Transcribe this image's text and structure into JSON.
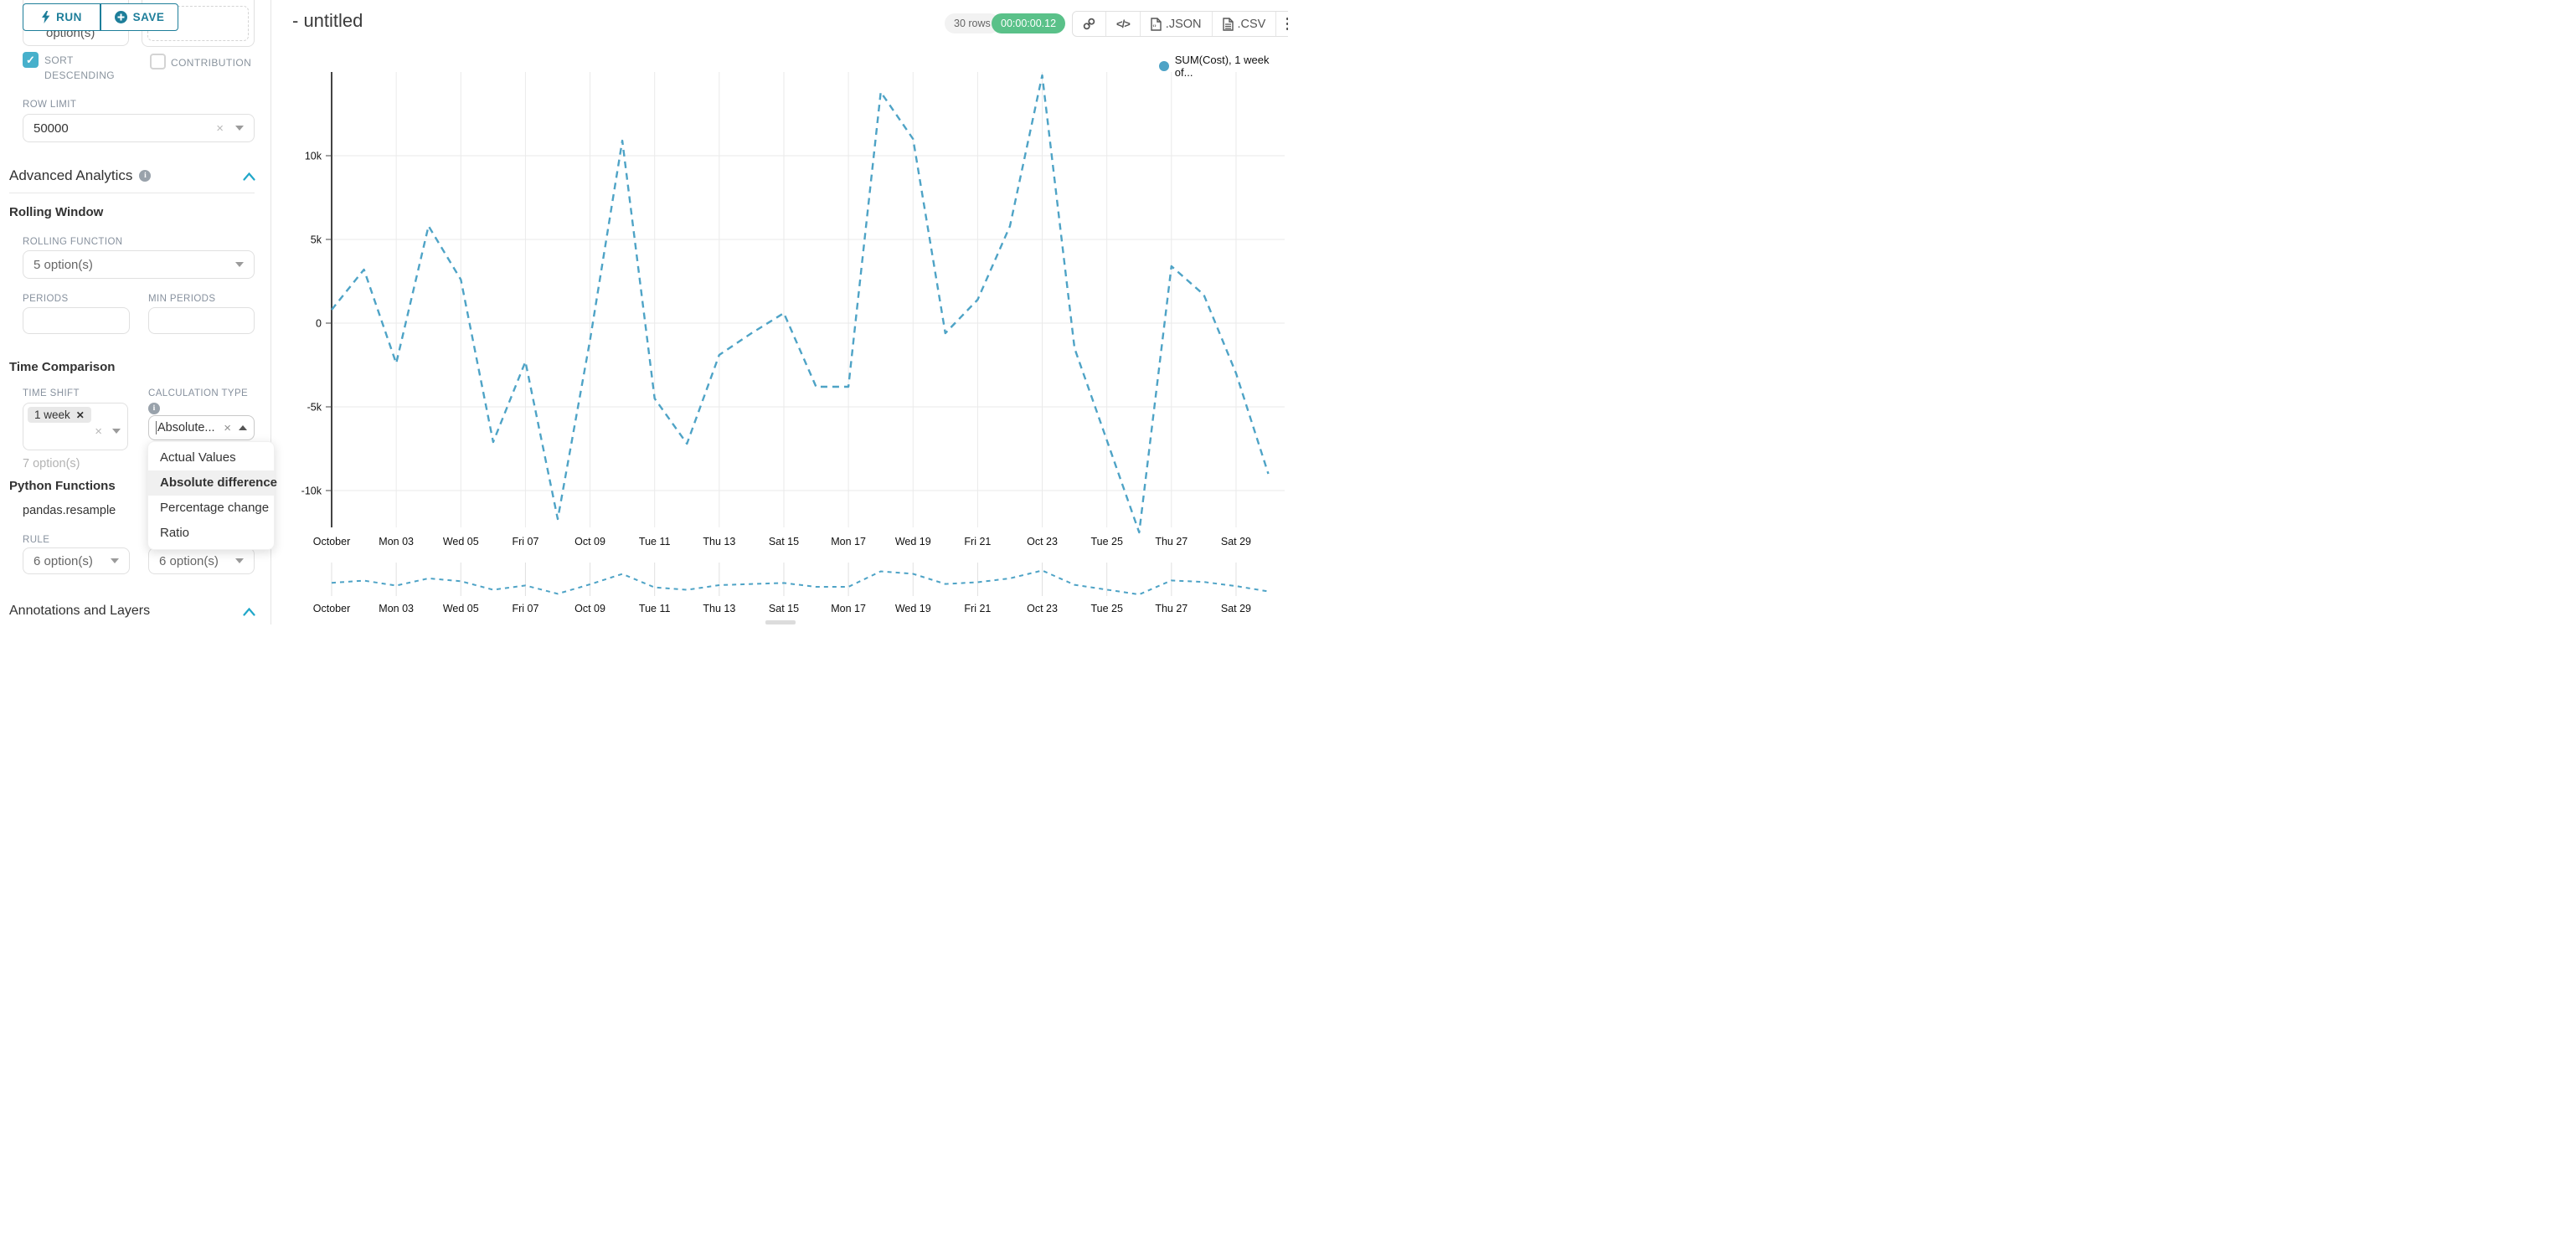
{
  "header": {
    "run_label": "RUN",
    "save_label": "SAVE",
    "title": "- untitled",
    "rows_badge": "30 rows",
    "timer_badge": "00:00:00.12",
    "export_json_label": ".JSON",
    "export_csv_label": ".CSV"
  },
  "sidebar": {
    "clipped_option_text": "option(s)",
    "sort_descending_label": "SORT DESCENDING",
    "contribution_label": "CONTRIBUTION",
    "row_limit_label": "ROW LIMIT",
    "row_limit_value": "50000",
    "advanced_analytics_title": "Advanced Analytics",
    "rolling_window_title": "Rolling Window",
    "rolling_function_label": "ROLLING FUNCTION",
    "rolling_function_value": "5 option(s)",
    "periods_label": "PERIODS",
    "min_periods_label": "MIN PERIODS",
    "time_comparison_title": "Time Comparison",
    "time_shift_label": "TIME SHIFT",
    "time_shift_tag": "1 week",
    "time_shift_helper": "7 option(s)",
    "calculation_type_label": "CALCULATION TYPE",
    "calculation_type_value": "Absolute...",
    "calculation_type_options": [
      "Actual Values",
      "Absolute difference",
      "Percentage change",
      "Ratio"
    ],
    "calculation_type_selected": "Absolute difference",
    "python_functions_title": "Python Functions",
    "python_functions_subtitle": "pandas.resample",
    "rule_label": "RULE",
    "rule_value": "6 option(s)",
    "rule_value_2": "6 option(s)",
    "annotations_title": "Annotations and Layers"
  },
  "colors": {
    "accent": "#20a7c9",
    "button_teal": "#1e7e9a",
    "checkbox_teal": "#47b0cb",
    "success_green": "#5ac189",
    "line_blue": "#4ea3c6"
  },
  "chart_data": {
    "type": "line",
    "title": "- untitled",
    "x": [
      "Oct 01",
      "Oct 02",
      "Oct 03",
      "Oct 04",
      "Oct 05",
      "Oct 06",
      "Oct 07",
      "Oct 08",
      "Oct 09",
      "Oct 10",
      "Oct 11",
      "Oct 12",
      "Oct 13",
      "Oct 14",
      "Oct 15",
      "Oct 16",
      "Oct 17",
      "Oct 18",
      "Oct 19",
      "Oct 20",
      "Oct 21",
      "Oct 22",
      "Oct 23",
      "Oct 24",
      "Oct 25",
      "Oct 26",
      "Oct 27",
      "Oct 28",
      "Oct 29",
      "Oct 30"
    ],
    "series": [
      {
        "name": "SUM(Cost), 1 week of...",
        "color": "#4ea3c6",
        "dashed": true,
        "values": [
          800,
          3200,
          -2400,
          5800,
          2600,
          -7100,
          -2300,
          -11700,
          -1000,
          10900,
          -4500,
          -7200,
          -1900,
          -600,
          600,
          -3800,
          -3800,
          13800,
          11000,
          -600,
          1400,
          5800,
          14800,
          -1500,
          -7000,
          -12500,
          3400,
          1700,
          -3000,
          -9000
        ]
      }
    ],
    "x_tick_labels": [
      "October",
      "Mon 03",
      "Wed 05",
      "Fri 07",
      "Oct 09",
      "Tue 11",
      "Thu 13",
      "Sat 15",
      "Mon 17",
      "Wed 19",
      "Fri 21",
      "Oct 23",
      "Tue 25",
      "Thu 27",
      "Sat 29"
    ],
    "y_ticks": [
      {
        "value": 10000,
        "label": "10k"
      },
      {
        "value": 5000,
        "label": "5k"
      },
      {
        "value": 0,
        "label": "0"
      },
      {
        "value": -5000,
        "label": "-5k"
      },
      {
        "value": -10000,
        "label": "-10k"
      }
    ],
    "ylim": [
      -13500,
      15200
    ],
    "grid": true,
    "legend_position": "top-right",
    "has_preview_strip": true
  }
}
